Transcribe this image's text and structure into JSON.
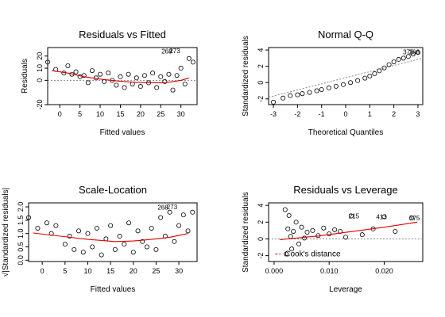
{
  "chart_data": [
    {
      "type": "scatter",
      "title": "Residuals vs Fitted",
      "xlabel": "Fitted values",
      "ylabel": "Residuals",
      "xlim": [
        -3,
        34
      ],
      "ylim": [
        -20,
        27
      ],
      "xticks": [
        0,
        5,
        10,
        15,
        20,
        25,
        30
      ],
      "yticks": [
        -20,
        0,
        10,
        20
      ],
      "ref_line": {
        "kind": "hline",
        "y": 0,
        "style": "dotted"
      },
      "smooth": {
        "x": [
          -2,
          2,
          6,
          10,
          14,
          18,
          22,
          26,
          28,
          30,
          32
        ],
        "y": [
          8,
          6,
          3,
          1,
          -0.5,
          -1.5,
          -2,
          -2,
          -1,
          0,
          2
        ]
      },
      "labels": [
        {
          "text": "268",
          "x": 26.5,
          "y": 24
        },
        {
          "text": "273",
          "x": 28.5,
          "y": 24.5
        }
      ],
      "points": {
        "x": [
          -3,
          -1,
          1,
          2,
          3,
          4,
          5,
          6,
          7,
          8,
          9,
          10,
          11,
          12,
          13,
          14,
          15,
          16,
          17,
          18,
          19,
          20,
          21,
          22,
          23,
          24,
          25,
          26,
          27,
          28,
          29,
          30,
          31,
          32,
          33
        ],
        "y": [
          15,
          9,
          6,
          12,
          5,
          7,
          3,
          4,
          -2,
          8,
          2,
          5,
          -1,
          6,
          0,
          -4,
          3,
          -6,
          5,
          -3,
          2,
          -5,
          4,
          -2,
          6,
          -6,
          3,
          -1,
          5,
          -8,
          4,
          10,
          -3,
          18,
          15
        ]
      }
    },
    {
      "type": "scatter",
      "title": "Normal Q-Q",
      "xlabel": "Theoretical Quantiles",
      "ylabel": "Standardized residuals",
      "xlim": [
        -3.2,
        3.2
      ],
      "ylim": [
        -2.7,
        4.3
      ],
      "xticks": [
        -3,
        -2,
        -1,
        0,
        1,
        2,
        3
      ],
      "yticks": [
        -2,
        0,
        2,
        4
      ],
      "ref_line": {
        "kind": "line",
        "x": [
          -3.2,
          3.2
        ],
        "y": [
          -1.8,
          3.0
        ],
        "style": "dotted"
      },
      "labels": [
        {
          "text": "375",
          "x": 2.6,
          "y": 3.75
        },
        {
          "text": "268",
          "x": 2.85,
          "y": 3.75
        }
      ],
      "points": {
        "x": [
          -3.0,
          -2.6,
          -2.3,
          -2.0,
          -1.8,
          -1.5,
          -1.2,
          -1.0,
          -0.7,
          -0.4,
          -0.1,
          0.2,
          0.5,
          0.8,
          1.0,
          1.2,
          1.4,
          1.6,
          1.8,
          2.0,
          2.2,
          2.4,
          2.6,
          2.8,
          3.0
        ],
        "y": [
          -2.4,
          -1.9,
          -1.6,
          -1.5,
          -1.35,
          -1.2,
          -1.0,
          -0.85,
          -0.65,
          -0.45,
          -0.25,
          0.0,
          0.25,
          0.55,
          0.8,
          1.1,
          1.45,
          1.8,
          2.2,
          2.55,
          2.85,
          3.0,
          3.2,
          3.5,
          3.7
        ]
      }
    },
    {
      "type": "scatter",
      "title": "Scale-Location",
      "xlabel": "Fitted values",
      "ylabel": "√|Standardized residuals|",
      "xlim": [
        -3,
        34
      ],
      "ylim": [
        -0.05,
        2.15
      ],
      "xticks": [
        0,
        5,
        10,
        15,
        20,
        25,
        30
      ],
      "yticks": [
        0.0,
        0.5,
        1.0,
        1.5,
        2.0
      ],
      "smooth": {
        "x": [
          -2,
          4,
          10,
          16,
          20,
          24,
          28,
          32
        ],
        "y": [
          1.02,
          0.9,
          0.78,
          0.7,
          0.72,
          0.78,
          0.86,
          1.0
        ]
      },
      "labels": [
        {
          "text": "268",
          "x": 26.5,
          "y": 1.98
        },
        {
          "text": "273",
          "x": 28.5,
          "y": 2.0
        }
      ],
      "points": {
        "x": [
          -3,
          -1,
          1,
          2,
          3,
          5,
          6,
          7,
          8,
          9,
          10,
          11,
          12,
          13,
          14,
          15,
          16,
          17,
          18,
          19,
          20,
          21,
          22,
          23,
          24,
          25,
          26,
          27,
          28,
          29,
          30,
          31,
          32,
          33
        ],
        "y": [
          1.6,
          1.2,
          1.4,
          1.0,
          1.3,
          0.6,
          0.9,
          0.4,
          1.1,
          0.3,
          1.0,
          0.5,
          1.2,
          0.2,
          0.8,
          1.3,
          0.4,
          0.9,
          0.6,
          1.4,
          0.3,
          1.1,
          0.7,
          0.5,
          1.2,
          0.4,
          1.6,
          0.9,
          1.8,
          0.7,
          1.3,
          1.7,
          1.1,
          1.8
        ]
      }
    },
    {
      "type": "scatter",
      "title": "Residuals vs Leverage",
      "xlabel": "Leverage",
      "ylabel": "Standardized residuals",
      "xlim": [
        -0.001,
        0.027
      ],
      "ylim": [
        -2.7,
        4.3
      ],
      "xticks": [
        0.0,
        0.01,
        0.02
      ],
      "xtick_labels": [
        "0.000",
        "0.010",
        "0.020"
      ],
      "yticks": [
        -2,
        0,
        2,
        4
      ],
      "ref_line": {
        "kind": "hline",
        "y": 0,
        "style": "dotted"
      },
      "smooth": {
        "x": [
          0.001,
          0.004,
          0.008,
          0.012,
          0.016,
          0.02,
          0.026
        ],
        "y": [
          -0.1,
          0.1,
          0.35,
          0.7,
          1.05,
          1.4,
          2.0
        ]
      },
      "cooks": {
        "label": "Cook's distance",
        "x": [
          0.0002,
          0.0012
        ],
        "y": -1.8
      },
      "labels": [
        {
          "text": "215",
          "x": 0.0145,
          "y": 2.75
        },
        {
          "text": "413",
          "x": 0.0195,
          "y": 2.65
        },
        {
          "text": "375",
          "x": 0.0255,
          "y": 2.5
        }
      ],
      "points": {
        "x": [
          0.002,
          0.0022,
          0.0025,
          0.0027,
          0.003,
          0.0032,
          0.0035,
          0.004,
          0.0045,
          0.005,
          0.0055,
          0.006,
          0.007,
          0.008,
          0.009,
          0.01,
          0.011,
          0.012,
          0.013,
          0.014,
          0.016,
          0.018,
          0.02,
          0.022,
          0.025
        ],
        "y": [
          3.5,
          -1.8,
          1.2,
          2.8,
          0.3,
          -1.2,
          0.9,
          2.0,
          -0.6,
          1.4,
          0.1,
          0.8,
          1.0,
          0.4,
          1.3,
          0.6,
          1.1,
          0.9,
          0.2,
          2.75,
          0.5,
          1.2,
          2.65,
          0.9,
          2.5
        ]
      }
    }
  ]
}
